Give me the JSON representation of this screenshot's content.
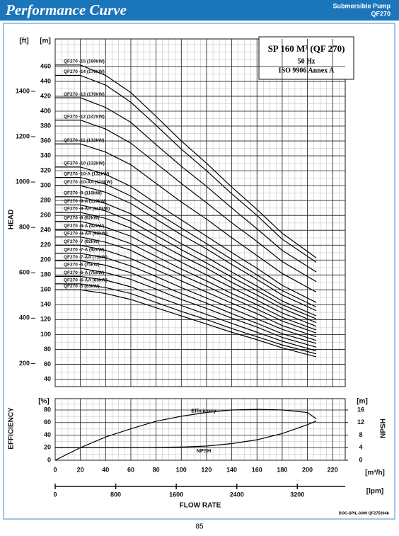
{
  "header": {
    "title": "Performance Curve",
    "subtitle_1": "Submersible Pump",
    "subtitle_2": "QF270"
  },
  "footer": {
    "doc": "DOC-SPIL-0309 QF275004b",
    "page": "85"
  },
  "chart_data": [
    {
      "type": "line",
      "y_unit": "[m]",
      "ylabel": "HEAD",
      "y2_unit": "[ft]",
      "annotation": {
        "title": "SP 160 M³ (QF 270)",
        "frequency": "50 Hz",
        "standard": "ISO 9906 Annex A"
      },
      "color": "#000000",
      "grid": true,
      "xlim": [
        0,
        230
      ],
      "ylim": [
        30,
        497
      ],
      "yticks": [
        40,
        60,
        80,
        100,
        120,
        140,
        160,
        180,
        200,
        220,
        240,
        260,
        280,
        300,
        320,
        340,
        360,
        380,
        400,
        420,
        440,
        460
      ],
      "y2lim": [
        98.4,
        1630.6
      ],
      "y2ticks": [
        200,
        400,
        600,
        800,
        1000,
        1200,
        1400
      ],
      "x": [
        0,
        20,
        40,
        60,
        80,
        100,
        120,
        140,
        160,
        180,
        207
      ],
      "series": [
        {
          "name": "QF270 -15 (190kW)",
          "values": [
            462,
            462,
            448,
            425,
            393,
            360,
            330,
            298,
            268,
            236,
            203
          ]
        },
        {
          "name": "QF270 -14 (170kW)",
          "values": [
            448,
            448,
            435,
            412,
            381,
            349,
            320,
            289,
            260,
            228,
            197
          ]
        },
        {
          "name": "QF270 -13 (170kW)",
          "values": [
            418,
            418,
            405,
            385,
            355,
            326,
            299,
            270,
            242,
            213,
            184
          ]
        },
        {
          "name": "QF270 -12 (147kW)",
          "values": [
            388,
            388,
            376,
            357,
            330,
            303,
            277,
            250,
            225,
            198,
            171
          ]
        },
        {
          "name": "QF270 -11 (132kW)",
          "values": [
            356,
            356,
            345,
            328,
            303,
            278,
            255,
            230,
            206,
            182,
            157
          ]
        },
        {
          "name": "QF270 -10 (132kW)",
          "values": [
            325,
            325,
            315,
            299,
            276,
            254,
            232,
            210,
            189,
            166,
            143
          ]
        },
        {
          "name": "QF270 -10-A (132kW)",
          "values": [
            311,
            311,
            302,
            286,
            264,
            243,
            222,
            201,
            180,
            159,
            137
          ]
        },
        {
          "name": "QF270 -10-AA (110kW)",
          "values": [
            300,
            300,
            291,
            276,
            255,
            234,
            215,
            194,
            174,
            153,
            132
          ]
        },
        {
          "name": "QF270 -9 (110kW)",
          "values": [
            285,
            285,
            276,
            262,
            242,
            222,
            204,
            184,
            165,
            145,
            125
          ]
        },
        {
          "name": "QF270 -9-A (110kW)",
          "values": [
            274,
            274,
            266,
            252,
            233,
            214,
            196,
            177,
            159,
            140,
            121
          ]
        },
        {
          "name": "QF270 -9-AA (110kW)",
          "values": [
            264,
            264,
            256,
            243,
            224,
            206,
            189,
            170,
            153,
            135,
            116
          ]
        },
        {
          "name": "QF270 -8 (92kW)",
          "values": [
            252,
            252,
            244,
            232,
            214,
            197,
            180,
            163,
            146,
            129,
            111
          ]
        },
        {
          "name": "QF270 -8-A (92kW)",
          "values": [
            241,
            241,
            234,
            222,
            205,
            188,
            172,
            155,
            140,
            123,
            106
          ]
        },
        {
          "name": "QF270 -8-AA (92kW)",
          "values": [
            231,
            231,
            224,
            213,
            196,
            180,
            165,
            149,
            134,
            118,
            102
          ]
        },
        {
          "name": "QF270 -7 (92kW)",
          "values": [
            220,
            220,
            213,
            202,
            187,
            172,
            157,
            142,
            128,
            112,
            97
          ]
        },
        {
          "name": "QF270 -7-A (92kW)",
          "values": [
            209,
            209,
            203,
            192,
            178,
            163,
            149,
            135,
            121,
            107,
            92
          ]
        },
        {
          "name": "QF270 -7-AA (75kW)",
          "values": [
            199,
            199,
            193,
            183,
            169,
            155,
            142,
            128,
            115,
            101,
            88
          ]
        },
        {
          "name": "QF270 -6 (75kW)",
          "values": [
            189,
            189,
            183,
            174,
            161,
            147,
            135,
            122,
            110,
            96,
            83
          ]
        },
        {
          "name": "QF270 -6-A (75kW)",
          "values": [
            178,
            178,
            173,
            164,
            151,
            139,
            127,
            115,
            103,
            91,
            78
          ]
        },
        {
          "name": "QF270 -6-AA (63kW)",
          "values": [
            168,
            168,
            163,
            155,
            143,
            131,
            120,
            108,
            97,
            86,
            74
          ]
        },
        {
          "name": "QF270 -5 (63kW)",
          "values": [
            160,
            160,
            155,
            147,
            136,
            125,
            114,
            103,
            93,
            82,
            70
          ]
        }
      ]
    },
    {
      "type": "line",
      "y_unit": "[%]",
      "ylabel": "EFFICIENCY",
      "y2_unit": "[m]",
      "y2label": "NPSH",
      "xlabel": "FLOW RATE",
      "x_unit": "[m³/h]",
      "x2_unit": "[lpm]",
      "color": "#000000",
      "grid": true,
      "xlim": [
        0,
        230
      ],
      "xticks": [
        0,
        20,
        40,
        60,
        80,
        100,
        120,
        140,
        160,
        180,
        200,
        220
      ],
      "x2lim": [
        0,
        3833
      ],
      "x2ticks": [
        0,
        800,
        1600,
        2400,
        3200
      ],
      "ylim": [
        0,
        98
      ],
      "yticks": [
        0,
        20,
        40,
        60,
        80
      ],
      "y2lim": [
        0,
        19.6
      ],
      "y2ticks": [
        0,
        4,
        8,
        12,
        16
      ],
      "x": [
        0,
        20,
        40,
        60,
        80,
        100,
        120,
        140,
        160,
        180,
        200,
        207
      ],
      "series": [
        {
          "name": "Efficiency",
          "values": [
            0,
            20,
            37,
            50,
            62,
            70,
            76,
            80,
            81,
            80,
            76,
            66
          ]
        },
        {
          "name": "NPSH",
          "axis": "y2",
          "values": [
            4,
            4,
            4,
            4,
            4.1,
            4.2,
            4.5,
            5.3,
            6.5,
            8.5,
            11.3,
            12.5
          ]
        }
      ]
    }
  ]
}
